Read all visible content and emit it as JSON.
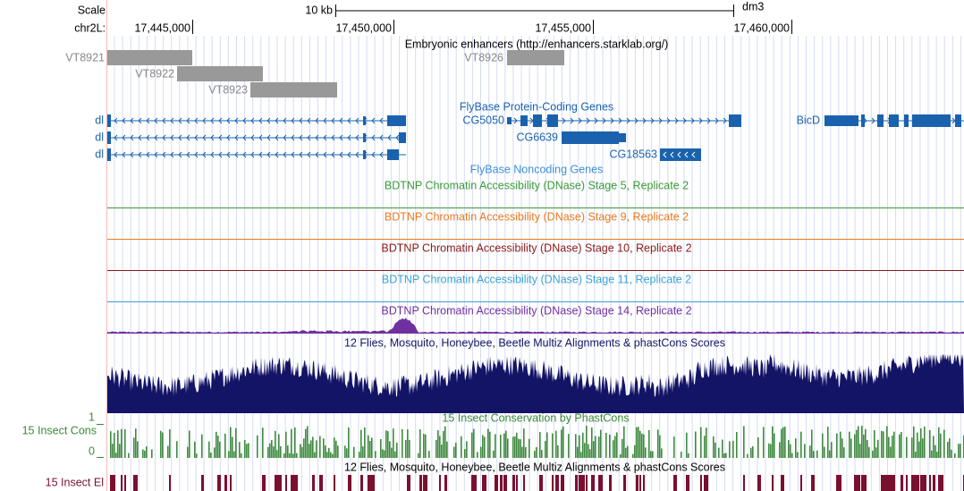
{
  "scale": {
    "label": "Scale",
    "size": "10 kb",
    "assembly": "dm3"
  },
  "position": {
    "label": "chr2L:",
    "ticks": [
      "17,445,000",
      "17,450,000",
      "17,455,000",
      "17,460,000"
    ]
  },
  "tracks": {
    "enhancers": {
      "title": "Embryonic enhancers (http://enhancers.starklab.org/)",
      "items": [
        "VT8921",
        "VT8922",
        "VT8923",
        "VT8926"
      ]
    },
    "protein_coding": {
      "title": "FlyBase Protein-Coding Genes",
      "genes": [
        "dl",
        "dl",
        "dl",
        "CG5050",
        "CG6639",
        "CG18563",
        "BicD"
      ]
    },
    "noncoding": {
      "title": "FlyBase Noncoding Genes"
    },
    "dnase": [
      "BDTNP Chromatin Accessibility (DNase) Stage 5, Replicate 2",
      "BDTNP Chromatin Accessibility (DNase) Stage 9, Replicate 2",
      "BDTNP Chromatin Accessibility (DNase) Stage 10, Replicate 2",
      "BDTNP Chromatin Accessibility (DNase) Stage 11, Replicate 2",
      "BDTNP Chromatin Accessibility (DNase) Stage 14, Replicate 2"
    ],
    "multiz": {
      "title": "12 Flies, Mosquito, Honeybee, Beetle Multiz Alignments & phastCons Scores"
    },
    "phastcons": {
      "label": "15 Insect Cons",
      "title": "15 Insect Conservation by PhastCons",
      "ymax": 1,
      "ymin": 0
    },
    "elements": {
      "label": "15 Insect El",
      "title": "12 Flies, Mosquito, Honeybee, Beetle Multiz Alignments & phastCons Scores"
    }
  }
}
